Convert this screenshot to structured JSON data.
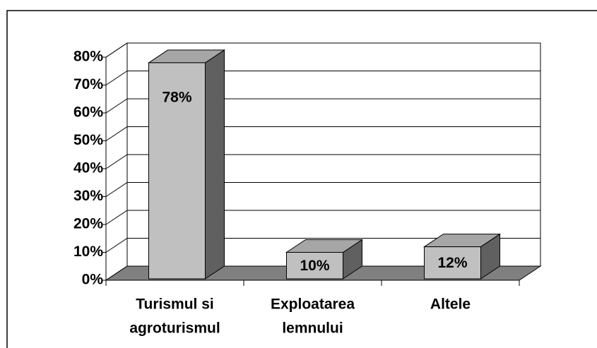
{
  "chart_data": {
    "type": "bar3d",
    "categories": [
      [
        "Turismul si",
        "agroturismul"
      ],
      [
        "Exploatarea",
        "lemnului"
      ],
      [
        "Altele"
      ]
    ],
    "values": [
      78,
      10,
      12
    ],
    "value_labels": [
      "78%",
      "10%",
      "12%"
    ],
    "ylim": [
      0,
      80
    ],
    "yticks": [
      {
        "value": 0,
        "label": "0%"
      },
      {
        "value": 10,
        "label": "10%"
      },
      {
        "value": 20,
        "label": "20%"
      },
      {
        "value": 30,
        "label": "30%"
      },
      {
        "value": 40,
        "label": "40%"
      },
      {
        "value": 50,
        "label": "50%"
      },
      {
        "value": 60,
        "label": "60%"
      },
      {
        "value": 70,
        "label": "70%"
      },
      {
        "value": 80,
        "label": "80%"
      }
    ],
    "grid": true,
    "color": "#c0c0c0"
  }
}
